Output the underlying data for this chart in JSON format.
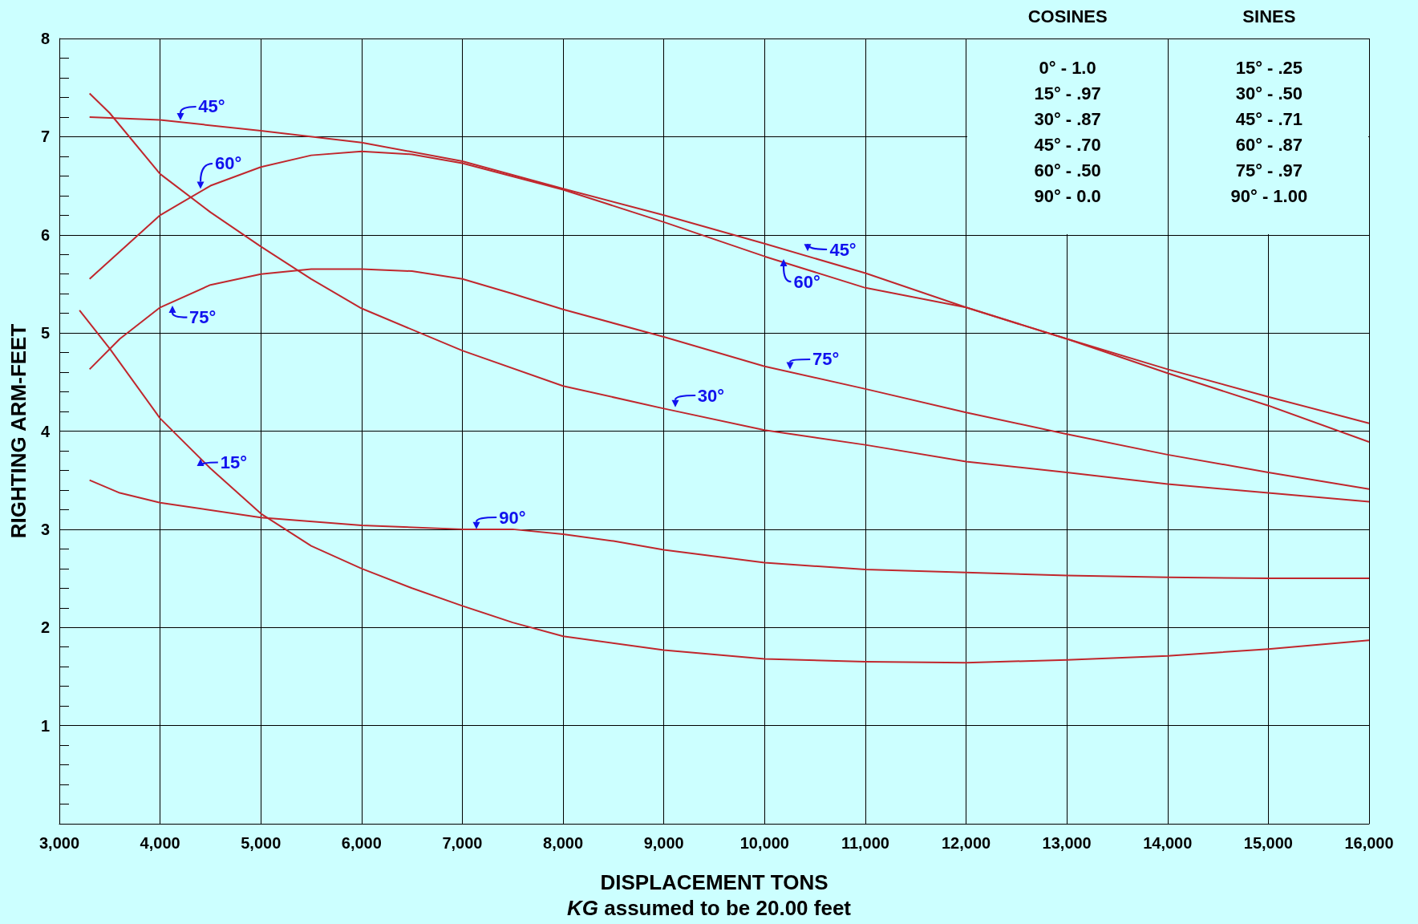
{
  "chart_data": {
    "type": "line",
    "subtitle": "KG assumed to be 20.00 feet",
    "xlabel": "DISPLACEMENT TONS",
    "ylabel": "RIGHTING ARM-FEET",
    "xlim": [
      3000,
      16000
    ],
    "xticks": [
      {
        "value": 3000,
        "label": "3,000"
      },
      {
        "value": 4000,
        "label": "4,000"
      },
      {
        "value": 5000,
        "label": "5,000"
      },
      {
        "value": 6000,
        "label": "6,000"
      },
      {
        "value": 7000,
        "label": "7,000"
      },
      {
        "value": 8000,
        "label": "8,000"
      },
      {
        "value": 9000,
        "label": "9,000"
      },
      {
        "value": 10000,
        "label": "10,000"
      },
      {
        "value": 11000,
        "label": "11,000"
      },
      {
        "value": 12000,
        "label": "12,000"
      },
      {
        "value": 13000,
        "label": "13,000"
      },
      {
        "value": 14000,
        "label": "14,000"
      },
      {
        "value": 15000,
        "label": "15,000"
      },
      {
        "value": 16000,
        "label": "16,000"
      }
    ],
    "ylim": [
      0,
      8
    ],
    "yticks": [
      {
        "value": 0,
        "label": null
      },
      1,
      2,
      3,
      4,
      5,
      6,
      7,
      8
    ],
    "grid": true,
    "marker": "none",
    "line_style": "solid",
    "series": [
      {
        "color": "#c0272d",
        "x": [
          3300,
          4000,
          5000,
          6000,
          7000,
          8000,
          9000,
          10000,
          11000,
          12000,
          13000,
          14000,
          15000,
          16000
        ],
        "values": [
          7.2,
          7.17,
          7.06,
          6.94,
          6.75,
          6.47,
          6.2,
          5.91,
          5.61,
          5.26,
          4.94,
          4.63,
          4.35,
          4.08
        ]
      },
      {
        "color": "#c0272d",
        "x": [
          3300,
          4000,
          4500,
          5000,
          5500,
          6000,
          6500,
          7000,
          8000,
          9000,
          10000,
          11000,
          12000,
          13000,
          14000,
          15000,
          16000
        ],
        "values": [
          5.55,
          6.2,
          6.5,
          6.69,
          6.81,
          6.85,
          6.82,
          6.73,
          6.46,
          6.13,
          5.78,
          5.46,
          5.26,
          4.94,
          4.59,
          4.26,
          3.89
        ]
      },
      {
        "color": "#c0272d",
        "x": [
          3300,
          3500,
          4000,
          4500,
          5000,
          5500,
          6000,
          7000,
          8000,
          9000,
          10000,
          11000,
          12000,
          13000,
          14000,
          15000,
          16000
        ],
        "values": [
          7.44,
          7.24,
          6.62,
          6.23,
          5.88,
          5.55,
          5.25,
          4.82,
          4.46,
          4.23,
          4.01,
          3.86,
          3.69,
          3.58,
          3.46,
          3.37,
          3.28
        ]
      },
      {
        "color": "#c0272d",
        "x": [
          3300,
          3600,
          4000,
          4500,
          5000,
          5500,
          6000,
          6500,
          7000,
          7500,
          8000,
          9000,
          10000,
          11000,
          12000,
          13000,
          14000,
          15000,
          16000
        ],
        "values": [
          4.63,
          4.94,
          5.26,
          5.49,
          5.6,
          5.65,
          5.65,
          5.63,
          5.55,
          5.4,
          5.24,
          4.96,
          4.66,
          4.43,
          4.19,
          3.97,
          3.76,
          3.58,
          3.41
        ]
      },
      {
        "color": "#c0272d",
        "x": [
          3200,
          3500,
          4000,
          4500,
          5000,
          5500,
          6000,
          6500,
          7000,
          7500,
          8000,
          9000,
          10000,
          11000,
          12000,
          13000,
          14000,
          15000,
          16000
        ],
        "values": [
          5.23,
          4.84,
          4.13,
          3.62,
          3.16,
          2.83,
          2.6,
          2.4,
          2.22,
          2.05,
          1.91,
          1.77,
          1.68,
          1.65,
          1.64,
          1.67,
          1.71,
          1.78,
          1.87
        ]
      },
      {
        "color": "#c0272d",
        "x": [
          3300,
          3600,
          4000,
          5000,
          6000,
          7000,
          7500,
          8000,
          8500,
          9000,
          10000,
          11000,
          12000,
          13000,
          14000,
          15000,
          16000
        ],
        "values": [
          3.5,
          3.37,
          3.27,
          3.12,
          3.04,
          3.0,
          3.0,
          2.95,
          2.88,
          2.79,
          2.66,
          2.59,
          2.56,
          2.53,
          2.51,
          2.5,
          2.5
        ]
      }
    ],
    "annotations": [
      "COSINES",
      "0° - 1.0",
      "15° - .97",
      "30° - .87",
      "45° - .70",
      "60° - .50",
      "90° - 0.0",
      "SINES",
      "15° - .25",
      "30° - .50",
      "45° - .71",
      "60° - .87",
      "75° - .97",
      "90° - 1.00",
      {
        "text": "45°",
        "x": 4200,
        "y": 7.17
      },
      {
        "text": "60°",
        "x": 4400,
        "y": 6.47
      },
      {
        "text": "75°",
        "x": 4120,
        "y": 5.28
      },
      {
        "text": "15°",
        "x": 4400,
        "y": 3.72
      },
      {
        "text": "90°",
        "x": 7140,
        "y": 3.0
      },
      {
        "text": "30°",
        "x": 9110,
        "y": 4.24
      },
      {
        "text": "75°",
        "x": 10250,
        "y": 4.63
      },
      {
        "text": "45°",
        "x": 10430,
        "y": 5.83
      },
      {
        "text": "60°",
        "x": 10190,
        "y": 5.75
      }
    ]
  }
}
